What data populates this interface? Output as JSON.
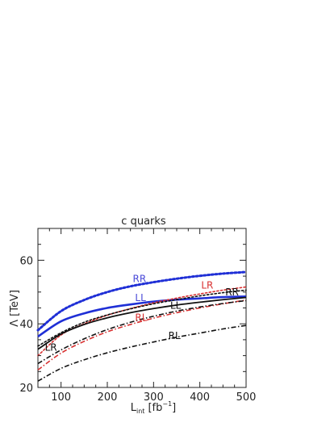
{
  "chart_data": {
    "type": "line",
    "title": "c quarks",
    "xlabel": {
      "main": "L",
      "sub": "int",
      "unit_pre": "[fb",
      "unit_sup": "−1",
      "unit_post": "]"
    },
    "ylabel": "Λ [TeV]",
    "xlim": [
      50,
      500
    ],
    "ylim": [
      20,
      70
    ],
    "xticks": [
      100,
      200,
      300,
      400,
      500
    ],
    "yticks": [
      20,
      40,
      60
    ],
    "grid": false,
    "series": [
      {
        "style": "dotted",
        "color": "#1f2fd6",
        "width": 3,
        "label": "RR",
        "x": [
          50,
          100,
          150,
          200,
          250,
          300,
          350,
          400,
          450,
          500
        ],
        "y": [
          38,
          44,
          47.5,
          50,
          51.8,
          53.1,
          54.2,
          55.1,
          55.8,
          56.3
        ]
      },
      {
        "style": "solid",
        "color": "#1f2fd6",
        "width": 2.6,
        "label": "LL",
        "x": [
          50,
          100,
          150,
          200,
          250,
          300,
          350,
          400,
          450,
          500
        ],
        "y": [
          36,
          40.8,
          43.3,
          45,
          46.1,
          47,
          47.6,
          48,
          48.4,
          48.6
        ]
      },
      {
        "style": "dotted",
        "color": "#d83030",
        "width": 1.6,
        "label": "LR",
        "x": [
          50,
          100,
          150,
          200,
          250,
          300,
          350,
          400,
          450,
          500
        ],
        "y": [
          30,
          36.5,
          40,
          42.7,
          44.8,
          46.6,
          48.1,
          49.4,
          50.6,
          51.6
        ]
      },
      {
        "style": "dashdot",
        "color": "#d83030",
        "width": 1.6,
        "label": "RL",
        "x": [
          50,
          100,
          150,
          200,
          250,
          300,
          350,
          400,
          450,
          500
        ],
        "y": [
          25.5,
          30.8,
          34.5,
          37.5,
          39.8,
          41.8,
          43.5,
          45,
          46.3,
          47.5
        ]
      },
      {
        "style": "dotted",
        "color": "#111111",
        "width": 1.6,
        "label": "RR",
        "x": [
          50,
          100,
          150,
          200,
          250,
          300,
          350,
          400,
          450,
          500
        ],
        "y": [
          33,
          37.2,
          40.5,
          42.8,
          44.7,
          46.3,
          47.6,
          48.8,
          49.8,
          50.6
        ]
      },
      {
        "style": "solid",
        "color": "#111111",
        "width": 1.8,
        "label": "LL",
        "x": [
          50,
          100,
          150,
          200,
          250,
          300,
          350,
          400,
          450,
          500
        ],
        "y": [
          32,
          36.8,
          39.8,
          41.9,
          43.5,
          44.8,
          45.9,
          46.8,
          47.6,
          48.3
        ]
      },
      {
        "style": "dashdot",
        "color": "#111111",
        "width": 1.6,
        "label": "LR",
        "x": [
          50,
          100,
          150,
          200,
          250,
          300,
          350,
          400,
          450,
          500
        ],
        "y": [
          27.5,
          31.8,
          35.3,
          38.2,
          40.5,
          42.4,
          44,
          45.3,
          46.4,
          47.3
        ]
      },
      {
        "style": "dashdot",
        "color": "#111111",
        "width": 1.6,
        "label": "RL",
        "x": [
          50,
          100,
          150,
          200,
          250,
          300,
          350,
          400,
          450,
          500
        ],
        "y": [
          22,
          26,
          28.7,
          30.9,
          32.7,
          34.3,
          35.8,
          37.1,
          38.4,
          39.5
        ]
      }
    ],
    "annotations": [
      {
        "text": "RR",
        "color": "#4a4ad8",
        "x": 255,
        "y": 53.1
      },
      {
        "text": "LL",
        "color": "#4a4ad8",
        "x": 260,
        "y": 47.1
      },
      {
        "text": "LR",
        "color": "#d83030",
        "x": 403,
        "y": 51.1
      },
      {
        "text": "RR",
        "color": "#111111",
        "x": 455,
        "y": 48.9
      },
      {
        "text": "LL",
        "color": "#111111",
        "x": 336,
        "y": 44.7
      },
      {
        "text": "RL",
        "color": "#d83030",
        "x": 260,
        "y": 40.9
      },
      {
        "text": "RL",
        "color": "#111111",
        "x": 332,
        "y": 35.2
      },
      {
        "text": "LR",
        "color": "#111111",
        "x": 65,
        "y": 31.6
      }
    ]
  }
}
